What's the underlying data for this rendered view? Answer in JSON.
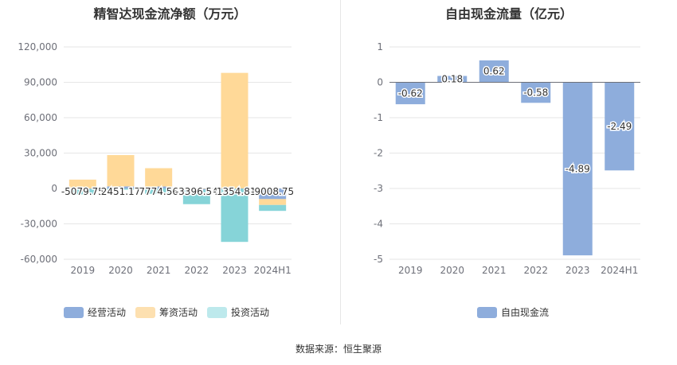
{
  "left_chart": {
    "title": "精智达现金流净额（万元）",
    "legend": [
      {
        "label": "经营活动",
        "color": "#8eaddc"
      },
      {
        "label": "筹资活动",
        "color": "#fde0b0"
      },
      {
        "label": "投资活动",
        "color": "#bde9ec"
      }
    ]
  },
  "right_chart": {
    "title": "自由现金流量（亿元）",
    "legend": [
      {
        "label": "自由现金流",
        "color": "#8eaddc"
      }
    ]
  },
  "source": "数据来源：恒生聚源",
  "chart_data": [
    {
      "type": "bar",
      "title": "精智达现金流净额（万元）",
      "stacked": true,
      "categories": [
        "2019",
        "2020",
        "2021",
        "2022",
        "2023",
        "2024H1"
      ],
      "ylim": [
        -60000,
        120000
      ],
      "yticks": [
        120000,
        90000,
        60000,
        30000,
        0,
        -30000,
        -60000
      ],
      "ytick_labels": [
        "120,000",
        "90,000",
        "60,000",
        "30,000",
        "0",
        "-30,000",
        "-60,000"
      ],
      "grid": true,
      "legend_position": "bottom",
      "series": [
        {
          "name": "经营活动",
          "color": "#8eaddc",
          "values": [
            -500,
            1800,
            1700,
            -1300,
            -300,
            -9000
          ]
        },
        {
          "name": "筹资活动",
          "color": "#ffd998",
          "values": [
            7500,
            26500,
            15500,
            0,
            98000,
            -5000
          ]
        },
        {
          "name": "投资活动",
          "color": "#86d4d8",
          "values": [
            -4500,
            -1000,
            -4500,
            -12000,
            -45000,
            -5000
          ]
        }
      ],
      "net_labels": [
        "-5079.75",
        "2451.17",
        "7774.56",
        "-3396.54",
        "-1354.81",
        "-9008.75"
      ]
    },
    {
      "type": "bar",
      "title": "自由现金流量（亿元）",
      "categories": [
        "2019",
        "2020",
        "2021",
        "2022",
        "2023",
        "2024H1"
      ],
      "ylim": [
        -5,
        1
      ],
      "yticks": [
        1,
        0,
        -1,
        -2,
        -3,
        -4,
        -5
      ],
      "ytick_labels": [
        "1",
        "0",
        "-1",
        "-2",
        "-3",
        "-4",
        "-5"
      ],
      "grid": true,
      "legend_position": "bottom",
      "series": [
        {
          "name": "自由现金流",
          "color": "#8eaddc",
          "values": [
            -0.62,
            0.18,
            0.62,
            -0.58,
            -4.89,
            -2.49
          ]
        }
      ],
      "data_labels": [
        "-0.62",
        "0.18",
        "0.62",
        "-0.58",
        "-4.89",
        "-2.49"
      ]
    }
  ]
}
